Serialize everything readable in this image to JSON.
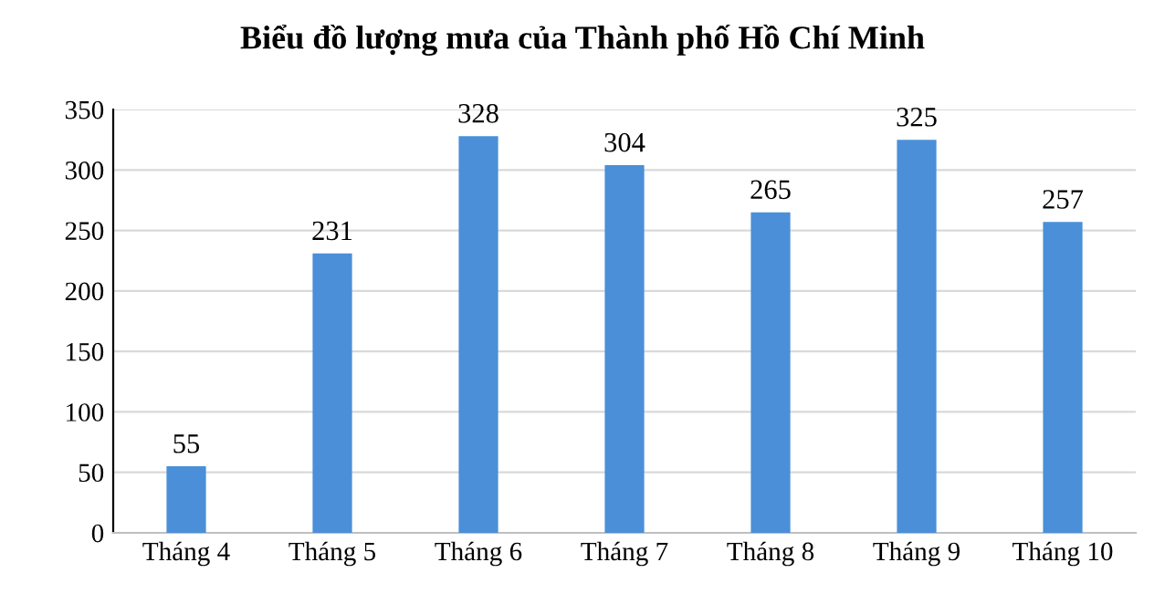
{
  "chart_data": {
    "type": "bar",
    "title": "Biểu đồ lượng mưa của Thành phố Hồ Chí Minh",
    "categories": [
      "Tháng 4",
      "Tháng 5",
      "Tháng 6",
      "Tháng 7",
      "Tháng 8",
      "Tháng 9",
      "Tháng 10"
    ],
    "values": [
      55,
      231,
      328,
      304,
      265,
      325,
      257
    ],
    "color": "#4a8fd8",
    "ylim": [
      0,
      350
    ],
    "yticks": [
      0,
      50,
      100,
      150,
      200,
      250,
      300,
      350
    ],
    "grid": "y",
    "data_labels": true
  }
}
